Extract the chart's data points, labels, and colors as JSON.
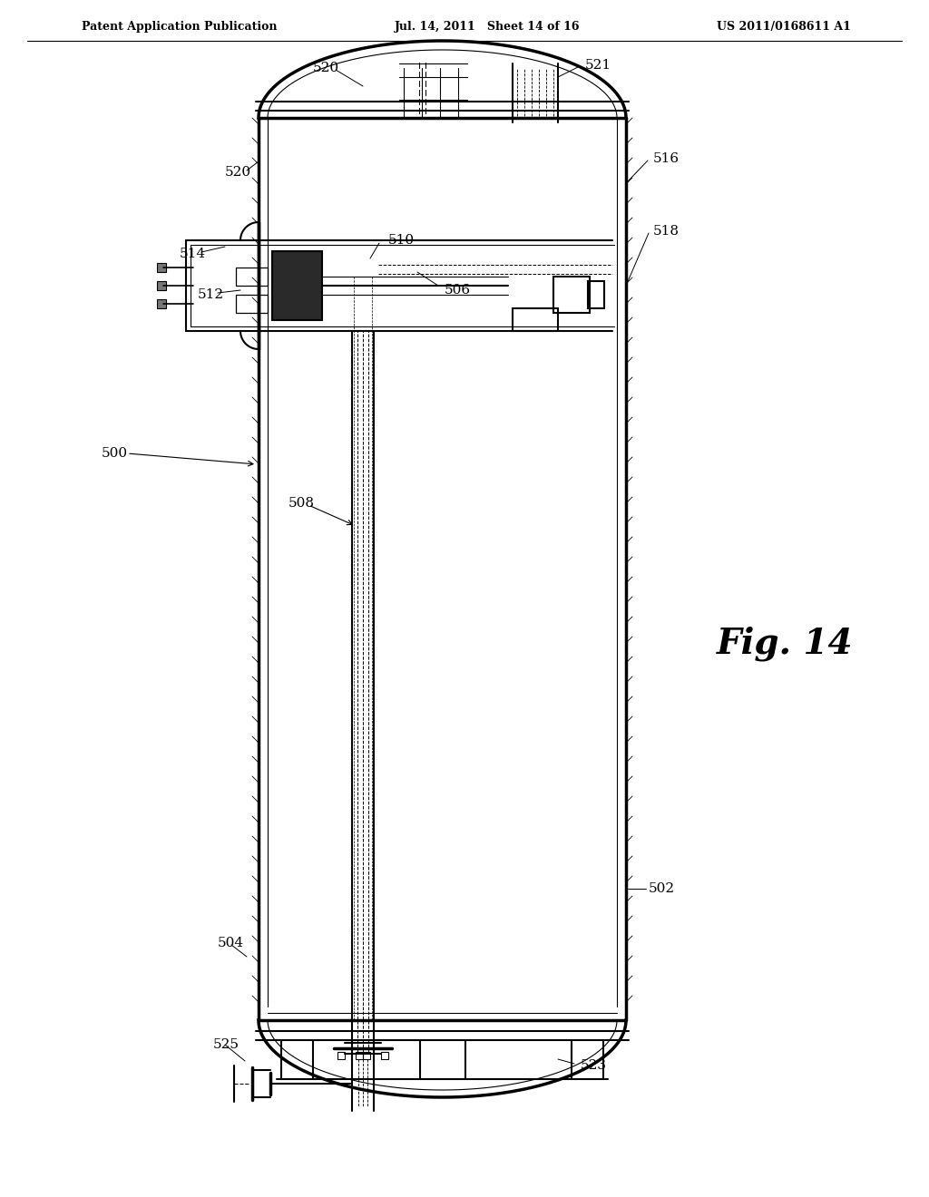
{
  "bg_color": "#ffffff",
  "line_color": "#000000",
  "header_left": "Patent Application Publication",
  "header_mid": "Jul. 14, 2011   Sheet 14 of 16",
  "header_right": "US 2011/0168611 A1",
  "fig_label": "Fig. 14",
  "label_500": "500",
  "label_502": "502",
  "label_504": "504",
  "label_506": "506",
  "label_508": "508",
  "label_510": "510",
  "label_512": "512",
  "label_514": "514",
  "label_516": "516",
  "label_518": "518",
  "label_520a": "520",
  "label_520b": "520",
  "label_521": "521",
  "label_523": "523",
  "label_525": "525"
}
